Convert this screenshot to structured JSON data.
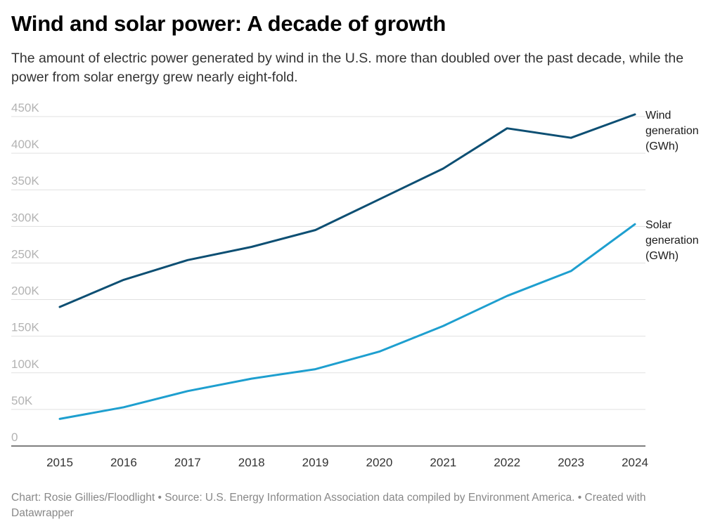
{
  "chart_data": {
    "type": "line",
    "title": "Wind and solar power: A decade of growth",
    "subtitle": "The amount of electric power generated by wind in the U.S. more than doubled over the past decade, while the power from solar energy grew nearly eight-fold.",
    "x": [
      "2015",
      "2016",
      "2017",
      "2018",
      "2019",
      "2020",
      "2021",
      "2022",
      "2023",
      "2024"
    ],
    "ylim": [
      0,
      450000
    ],
    "yticks": [
      0,
      50000,
      100000,
      150000,
      200000,
      250000,
      300000,
      350000,
      400000,
      450000
    ],
    "ytick_labels": [
      "0",
      "50K",
      "100K",
      "150K",
      "200K",
      "250K",
      "300K",
      "350K",
      "400K",
      "450K"
    ],
    "grid": true,
    "series": [
      {
        "name": "Wind generation (GWh)",
        "label_lines": [
          "Wind",
          "generation",
          "(GWh)"
        ],
        "color": "#0d4f73",
        "values": [
          190000,
          227000,
          254000,
          272000,
          295000,
          337000,
          379000,
          434000,
          421000,
          453000
        ]
      },
      {
        "name": "Solar generation (GWh)",
        "label_lines": [
          "Solar",
          "generation",
          "(GWh)"
        ],
        "color": "#1e9fcf",
        "values": [
          37000,
          53000,
          75000,
          92000,
          105000,
          129000,
          164000,
          205000,
          239000,
          303000
        ]
      }
    ],
    "footer": "Chart: Rosie Gillies/Floodlight • Source: U.S. Energy Information Association data compiled by Environment America. • Created with Datawrapper"
  }
}
